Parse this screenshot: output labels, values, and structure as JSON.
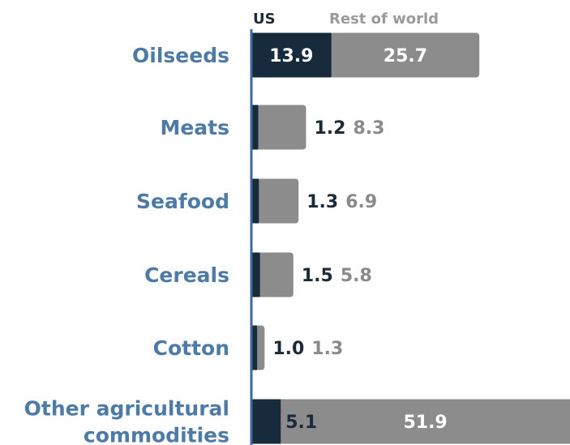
{
  "chart_data": {
    "type": "bar",
    "orientation": "horizontal",
    "stacked": true,
    "categories": [
      [
        "Oilseeds"
      ],
      [
        "Meats"
      ],
      [
        "Seafood"
      ],
      [
        "Cereals"
      ],
      [
        "Cotton"
      ],
      [
        "Other agricultural",
        "commodities"
      ]
    ],
    "series": [
      {
        "name": "US",
        "values": [
          13.9,
          1.2,
          1.3,
          1.5,
          1.0,
          5.1
        ]
      },
      {
        "name": "Rest of world",
        "values": [
          25.7,
          8.3,
          6.9,
          5.8,
          1.3,
          51.9
        ]
      }
    ],
    "value_labels": {
      "US": [
        "13.9",
        "1.2",
        "1.3",
        "1.5",
        "1.0",
        "5.1"
      ],
      "Rest of world": [
        "25.7",
        "8.3",
        "6.9",
        "5.8",
        "1.3",
        "51.9"
      ]
    },
    "legend": {
      "position": "top",
      "items": [
        "US",
        "Rest of world"
      ]
    },
    "colors": {
      "US": "#172b3d",
      "Rest of world": "#8c8c8c",
      "category_label": "#4e7aa6",
      "axis": "#3d6a9a"
    },
    "grid": false,
    "title": "",
    "xlabel": "",
    "ylabel": ""
  }
}
